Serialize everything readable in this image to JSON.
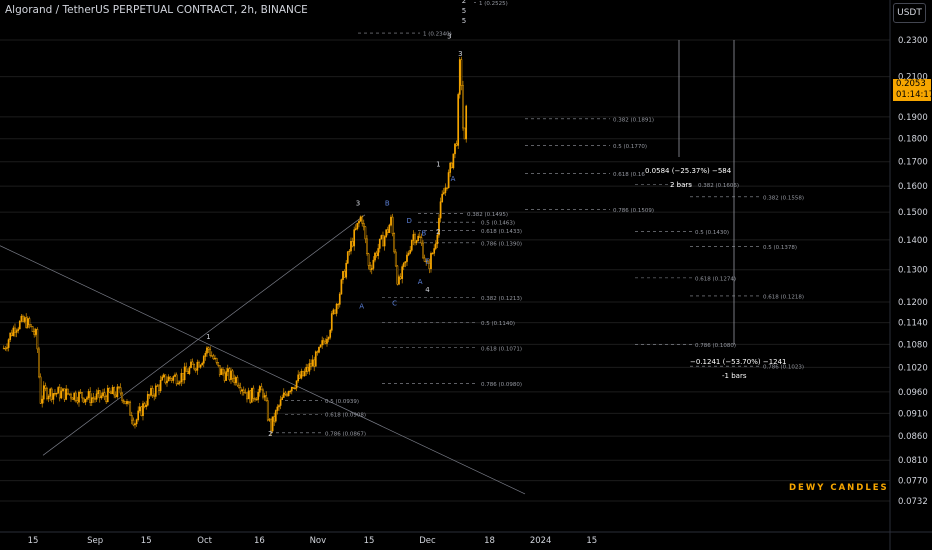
{
  "header": {
    "title": "Algorand / TetherUS PERPETUAL CONTRACT, 2h, BINANCE",
    "currency_button": "USDT"
  },
  "last_price": {
    "value": "0.2053",
    "countdown": "01:14:17"
  },
  "watermark": "DEWY CANDLES",
  "colors": {
    "background": "#000000",
    "candle": "#f7a600",
    "grid": "#1c1c1c",
    "fib_line": "#9598a1",
    "wave_label": "#5b7fd6",
    "trend_line": "#787b86",
    "axis_text": "#d1d4dc"
  },
  "chart_data": {
    "type": "candlestick",
    "title": "Algorand / TetherUS PERPETUAL CONTRACT, 2h, BINANCE",
    "y_axis": {
      "scale": "log",
      "range": [
        0.072,
        0.26
      ],
      "ticks": [
        "0.2300",
        "0.2100",
        "0.1900",
        "0.1800",
        "0.1700",
        "0.1600",
        "0.1500",
        "0.1400",
        "0.1300",
        "0.1200",
        "0.1140",
        "0.1080",
        "0.1020",
        "0.0960",
        "0.0910",
        "0.0860",
        "0.0810",
        "0.0770",
        "0.0732"
      ]
    },
    "x_axis": {
      "ticks": [
        "15",
        "Sep",
        "15",
        "Oct",
        "16",
        "Nov",
        "15",
        "Dec",
        "18",
        "2024",
        "15"
      ]
    },
    "price_path": [
      {
        "date": "2023-08-07",
        "price": 0.107
      },
      {
        "date": "2023-08-10",
        "price": 0.113
      },
      {
        "date": "2023-08-13",
        "price": 0.1145
      },
      {
        "date": "2023-08-16",
        "price": 0.11
      },
      {
        "date": "2023-08-17",
        "price": 0.094
      },
      {
        "date": "2023-08-18",
        "price": 0.096
      },
      {
        "date": "2023-08-25",
        "price": 0.0955
      },
      {
        "date": "2023-09-01",
        "price": 0.0945
      },
      {
        "date": "2023-09-08",
        "price": 0.096
      },
      {
        "date": "2023-09-12",
        "price": 0.089
      },
      {
        "date": "2023-09-15",
        "price": 0.094
      },
      {
        "date": "2023-09-20",
        "price": 0.099
      },
      {
        "date": "2023-09-25",
        "price": 0.1
      },
      {
        "date": "2023-09-30",
        "price": 0.104
      },
      {
        "date": "2023-10-02",
        "price": 0.107
      },
      {
        "date": "2023-10-05",
        "price": 0.101
      },
      {
        "date": "2023-10-10",
        "price": 0.099
      },
      {
        "date": "2023-10-13",
        "price": 0.095
      },
      {
        "date": "2023-10-17",
        "price": 0.096
      },
      {
        "date": "2023-10-19",
        "price": 0.0875
      },
      {
        "date": "2023-10-21",
        "price": 0.092
      },
      {
        "date": "2023-10-24",
        "price": 0.097
      },
      {
        "date": "2023-10-28",
        "price": 0.1
      },
      {
        "date": "2023-11-01",
        "price": 0.105
      },
      {
        "date": "2023-11-04",
        "price": 0.112
      },
      {
        "date": "2023-11-07",
        "price": 0.123
      },
      {
        "date": "2023-11-10",
        "price": 0.138
      },
      {
        "date": "2023-11-13",
        "price": 0.149
      },
      {
        "date": "2023-11-15",
        "price": 0.13
      },
      {
        "date": "2023-11-17",
        "price": 0.136
      },
      {
        "date": "2023-11-20",
        "price": 0.143
      },
      {
        "date": "2023-11-21",
        "price": 0.147
      },
      {
        "date": "2023-11-23",
        "price": 0.125
      },
      {
        "date": "2023-11-25",
        "price": 0.132
      },
      {
        "date": "2023-11-27",
        "price": 0.142
      },
      {
        "date": "2023-11-29",
        "price": 0.14
      },
      {
        "date": "2023-12-01",
        "price": 0.13
      },
      {
        "date": "2023-12-03",
        "price": 0.138
      },
      {
        "date": "2023-12-05",
        "price": 0.155
      },
      {
        "date": "2023-12-07",
        "price": 0.165
      },
      {
        "date": "2023-12-09",
        "price": 0.18
      },
      {
        "date": "2023-12-10",
        "price": 0.222
      },
      {
        "date": "2023-12-11",
        "price": 0.172
      },
      {
        "date": "2023-12-12",
        "price": 0.2053
      }
    ],
    "wave_labels": [
      {
        "text": "1",
        "date": "2023-10-02",
        "price": 0.1095
      },
      {
        "text": "2",
        "date": "2023-10-19",
        "price": 0.086
      },
      {
        "text": "3",
        "date": "2023-11-12",
        "price": 0.1525
      },
      {
        "text": "4",
        "date": "2023-12-01",
        "price": 0.123
      },
      {
        "text": "A",
        "date": "2023-11-13",
        "price": 0.118
      },
      {
        "text": "B",
        "date": "2023-11-20",
        "price": 0.1525
      },
      {
        "text": "C",
        "date": "2023-11-22",
        "price": 0.119
      },
      {
        "text": "D",
        "date": "2023-11-26",
        "price": 0.146
      },
      {
        "text": "E",
        "date": "2023-12-01",
        "price": 0.132
      },
      {
        "text": "A",
        "date": "2023-11-29",
        "price": 0.1255
      },
      {
        "text": "B",
        "date": "2023-11-30",
        "price": 0.1415
      },
      {
        "text": "1",
        "date": "2023-12-04",
        "price": 0.168
      },
      {
        "text": "2",
        "date": "2023-12-04",
        "price": 0.142
      },
      {
        "text": "A",
        "date": "2023-12-08",
        "price": 0.162
      },
      {
        "text": "3",
        "date": "2023-12-07",
        "price": 0.231
      },
      {
        "text": "3",
        "date": "2023-12-10",
        "price": 0.221
      },
      {
        "text": "2",
        "date": "2023-12-11",
        "price": 0.252
      },
      {
        "text": "5",
        "date": "2023-12-11",
        "price": 0.246
      },
      {
        "text": "5",
        "date": "2023-12-11",
        "price": 0.24
      }
    ],
    "fib_levels": [
      {
        "label": "1 (0.2525)",
        "price": 0.2525
      },
      {
        "label": "1 (0.2340)",
        "price": 0.234
      },
      {
        "label": "0.382 (0.1891)",
        "price": 0.1891
      },
      {
        "label": "0.5 (0.1770)",
        "price": 0.177
      },
      {
        "label": "0.618 (0.16",
        "price": 0.165
      },
      {
        "label": "0.786 (0.1509)",
        "price": 0.1509
      },
      {
        "label": "0.382 (0.1606)",
        "price": 0.1606
      },
      {
        "label": "0.382 (0.1558)",
        "price": 0.1558
      },
      {
        "label": "0.5 (0.1430)",
        "price": 0.143
      },
      {
        "label": "0.5 (0.1378)",
        "price": 0.1378
      },
      {
        "label": "0.618 (0.1274)",
        "price": 0.1274
      },
      {
        "label": "0.618 (0.1218)",
        "price": 0.1218
      },
      {
        "label": "0.786 (0.1080)",
        "price": 0.108
      },
      {
        "label": "0.786 (0.1023)",
        "price": 0.1023
      },
      {
        "label": "0.382 (0.1495)",
        "price": 0.1495
      },
      {
        "label": "0.5 (0.1463)",
        "price": 0.1463
      },
      {
        "label": "0.618 (0.1433)",
        "price": 0.1433
      },
      {
        "label": "0.786 (0.1390)",
        "price": 0.139
      },
      {
        "label": "0.382 (0.1213)",
        "price": 0.1213
      },
      {
        "label": "0.5 (0.1140)",
        "price": 0.114
      },
      {
        "label": "0.618 (0.1071)",
        "price": 0.1071
      },
      {
        "label": "0.786 (0.0980)",
        "price": 0.098
      },
      {
        "label": "0.5 (0.0939)",
        "price": 0.0939
      },
      {
        "label": "0.618 (0.0908)",
        "price": 0.0908
      },
      {
        "label": "0.786 (0.0867)",
        "price": 0.0867
      }
    ],
    "measurements": [
      {
        "change": "0.0584 (−25.37%) −584",
        "bars": "2 bars"
      },
      {
        "change": "−0.1241 (−53.70%) −1241",
        "bars": "-1 bars"
      }
    ]
  }
}
